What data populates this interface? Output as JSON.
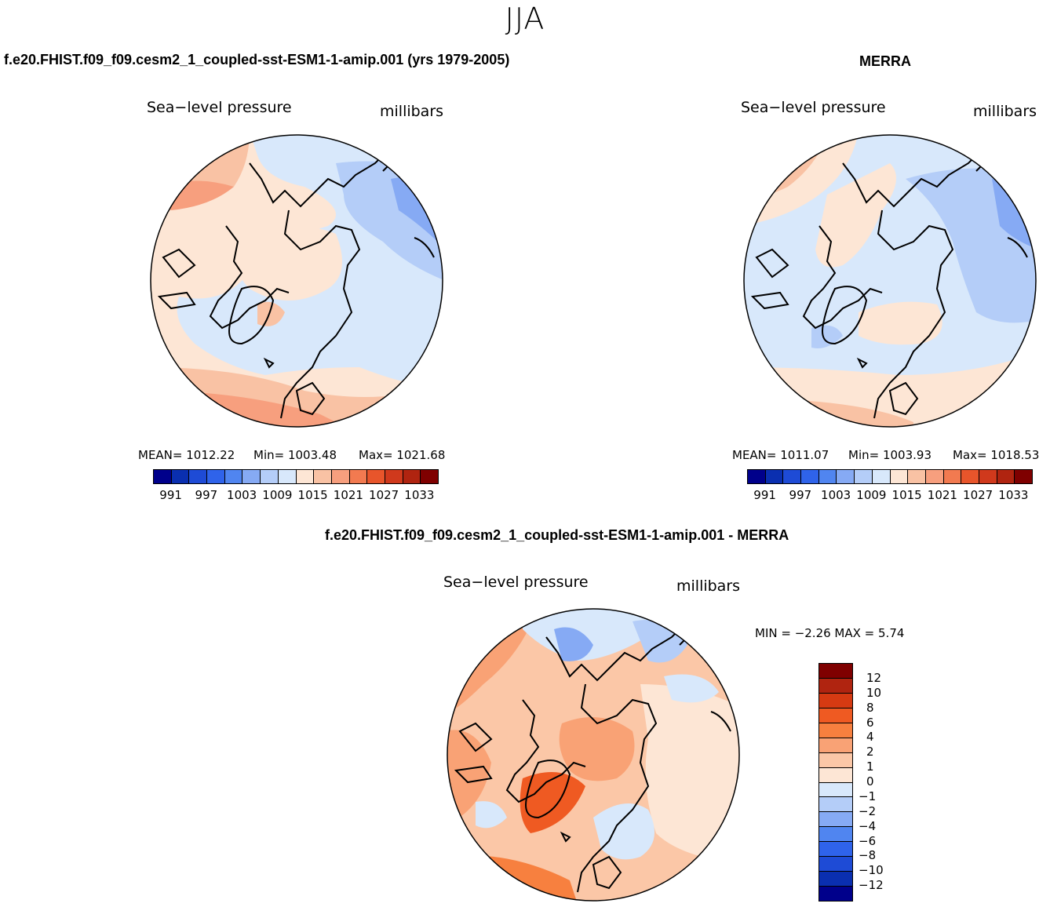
{
  "season": "JJA",
  "panels": {
    "model": {
      "title": "f.e20.FHIST.f09_f09.cesm2_1_coupled-sst-ESM1-1-amip.001 (yrs 1979-2005)",
      "variable": "Sea−level pressure",
      "units": "millibars",
      "mean": "MEAN=  1012.22",
      "min": "Min=  1003.48",
      "max": "Max=  1021.68"
    },
    "obs": {
      "title": "MERRA",
      "variable": "Sea−level pressure",
      "units": "millibars",
      "mean": "MEAN=  1011.07",
      "min": "Min=  1003.93",
      "max": "Max=  1018.53"
    },
    "diff": {
      "title": "f.e20.FHIST.f09_f09.cesm2_1_coupled-sst-ESM1-1-amip.001 - MERRA",
      "variable": "Sea−level pressure",
      "units": "millibars",
      "minmax": "MIN =   −2.26  MAX =     5.74"
    }
  },
  "colorbar_abs": {
    "colors": [
      "#00008b",
      "#0a2fb0",
      "#1e4bd6",
      "#2f63ea",
      "#5085f0",
      "#86aaf4",
      "#b4cdf8",
      "#d8e8fb",
      "#fde6d5",
      "#f9c2a4",
      "#f79f7e",
      "#f27a50",
      "#e8552b",
      "#d0391c",
      "#b02410",
      "#7f0000"
    ],
    "ticks": [
      "991",
      "997",
      "1003",
      "1009",
      "1015",
      "1021",
      "1027",
      "1033"
    ]
  },
  "colorbar_diff": {
    "colors": [
      "#7f0000",
      "#b02410",
      "#d63a12",
      "#ef5a22",
      "#f7803f",
      "#f9a275",
      "#fbc7a7",
      "#fde6d5",
      "#d8e8fb",
      "#b4cdf8",
      "#86aaf4",
      "#5085f0",
      "#2f63ea",
      "#1e4bd6",
      "#0a2fb0",
      "#00008b"
    ],
    "labels": [
      "12",
      "10",
      "8",
      "6",
      "4",
      "2",
      "1",
      "0",
      "−1",
      "−2",
      "−4",
      "−6",
      "−8",
      "−10",
      "−12"
    ]
  },
  "map_colors": {
    "land_outline": "#000000",
    "near_zero_pos": "#fde6d5",
    "light_pos": "#fbc7a7",
    "mid_pos": "#f79f7e",
    "strong_pos": "#f27a50",
    "near_zero_neg": "#d8e8fb",
    "light_neg": "#b4cdf8",
    "mid_neg": "#86aaf4"
  }
}
